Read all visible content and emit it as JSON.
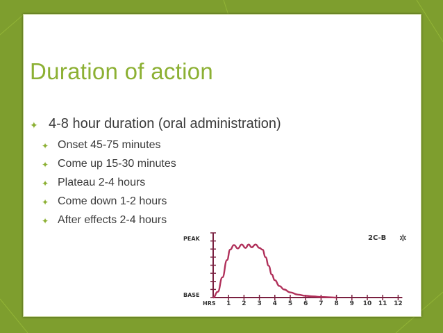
{
  "slide": {
    "title": "Duration of action",
    "bullets": [
      {
        "text": "4-8 hour duration (oral administration)",
        "level": 1
      },
      {
        "text": "Onset 45-75 minutes",
        "level": 2
      },
      {
        "text": "Come up 15-30 minutes",
        "level": 2
      },
      {
        "text": "Plateau 2-4 hours",
        "level": 2
      },
      {
        "text": "Come down 1-2 hours",
        "level": 2
      },
      {
        "text": "After effects 2-4 hours",
        "level": 2
      }
    ],
    "bullet_marker": "✦"
  },
  "colors": {
    "background": "#7e9e2e",
    "title": "#8cb033",
    "curve": "#b0305a",
    "axes": "#7a2040",
    "text": "#3a3a3a"
  },
  "chart_data": {
    "type": "line",
    "title": "2C-B",
    "ylabel_top": "PEAK",
    "ylabel_bottom": "BASE",
    "xlabel": "HRS",
    "x_ticks": [
      "1",
      "2",
      "3",
      "4",
      "5",
      "6",
      "7",
      "8",
      "9",
      "10",
      "11",
      "12"
    ],
    "ylim": [
      0,
      1
    ],
    "xlim": [
      0,
      12
    ],
    "series": [
      {
        "x": [
          0,
          0.3,
          0.6,
          0.9,
          1.1,
          1.35,
          1.6,
          1.85,
          2.1,
          2.3,
          2.5,
          2.75,
          3.0,
          3.2,
          3.4,
          3.6,
          3.8,
          4.0,
          4.3,
          4.6,
          5.0,
          5.5,
          6.0,
          6.5,
          7.0,
          7.5,
          8.0
        ],
        "y": [
          0.0,
          0.1,
          0.35,
          0.65,
          0.83,
          0.91,
          0.85,
          0.92,
          0.86,
          0.92,
          0.87,
          0.92,
          0.86,
          0.83,
          0.7,
          0.55,
          0.4,
          0.3,
          0.2,
          0.14,
          0.09,
          0.05,
          0.03,
          0.02,
          0.01,
          0.005,
          0.0
        ]
      }
    ]
  }
}
